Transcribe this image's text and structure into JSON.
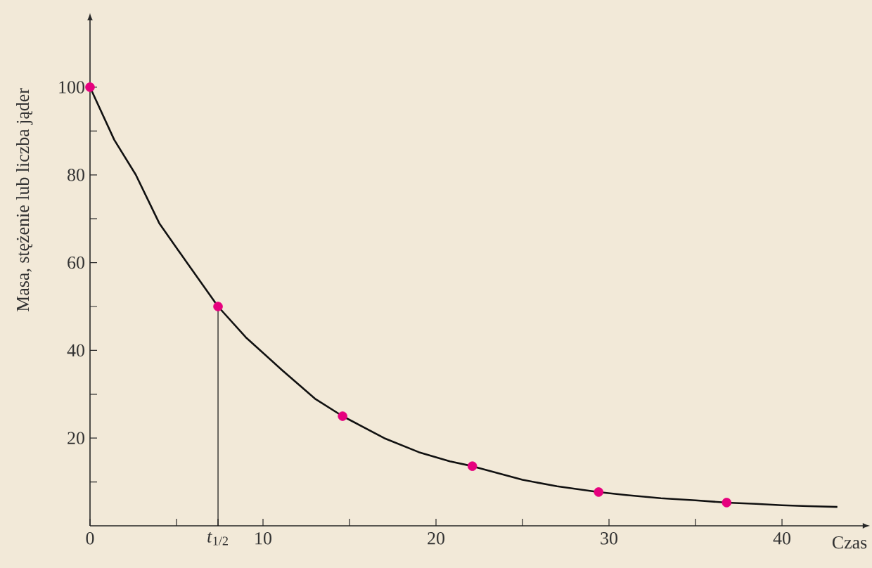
{
  "chart_data": {
    "type": "line",
    "xlabel": "Czas",
    "ylabel": "Masa, stężenie lub liczba jąder",
    "xlim": [
      0,
      44.6
    ],
    "ylim": [
      0,
      115
    ],
    "xticks": [
      0,
      {
        "value": 5,
        "label": null
      },
      {
        "value": 7.4,
        "label": "*t*$_{1/2}$"
      },
      10,
      {
        "value": 15,
        "label": null
      },
      20,
      {
        "value": 25,
        "label": null
      },
      30,
      {
        "value": 35,
        "label": null
      },
      40
    ],
    "yticks": [
      {
        "value": 10,
        "label": null
      },
      20,
      {
        "value": 30,
        "label": null
      },
      40,
      {
        "value": 50,
        "label": null
      },
      60,
      {
        "value": 70,
        "label": null
      },
      80,
      {
        "value": 90,
        "label": null
      },
      100
    ],
    "series": [
      {
        "type": "line",
        "color": "#111111",
        "x": [
          0,
          1.4,
          2.65,
          4,
          5.6,
          7.4,
          9,
          11.1,
          13,
          14.6,
          17,
          19,
          20.8,
          22.1,
          25,
          27,
          29.4,
          31,
          33,
          35,
          36.8,
          38.5,
          40,
          41.5,
          43.2
        ],
        "values": [
          100,
          88,
          80,
          69,
          60,
          50,
          43,
          35.5,
          29,
          25,
          20,
          16.8,
          14.7,
          13.6,
          10.5,
          9,
          7.7,
          7,
          6.3,
          5.8,
          5.3,
          5,
          4.7,
          4.5,
          4.3
        ]
      },
      {
        "type": "line",
        "color": "#111111",
        "x": [
          7.4,
          7.4
        ],
        "values": [
          0,
          50
        ]
      },
      {
        "type": "scatter",
        "color": "#e6007e",
        "marker": "circle",
        "x": [
          0,
          7.4,
          14.6,
          22.1,
          29.4,
          36.8
        ],
        "values": [
          100,
          50,
          25,
          13.6,
          7.7,
          5.3
        ]
      }
    ]
  }
}
